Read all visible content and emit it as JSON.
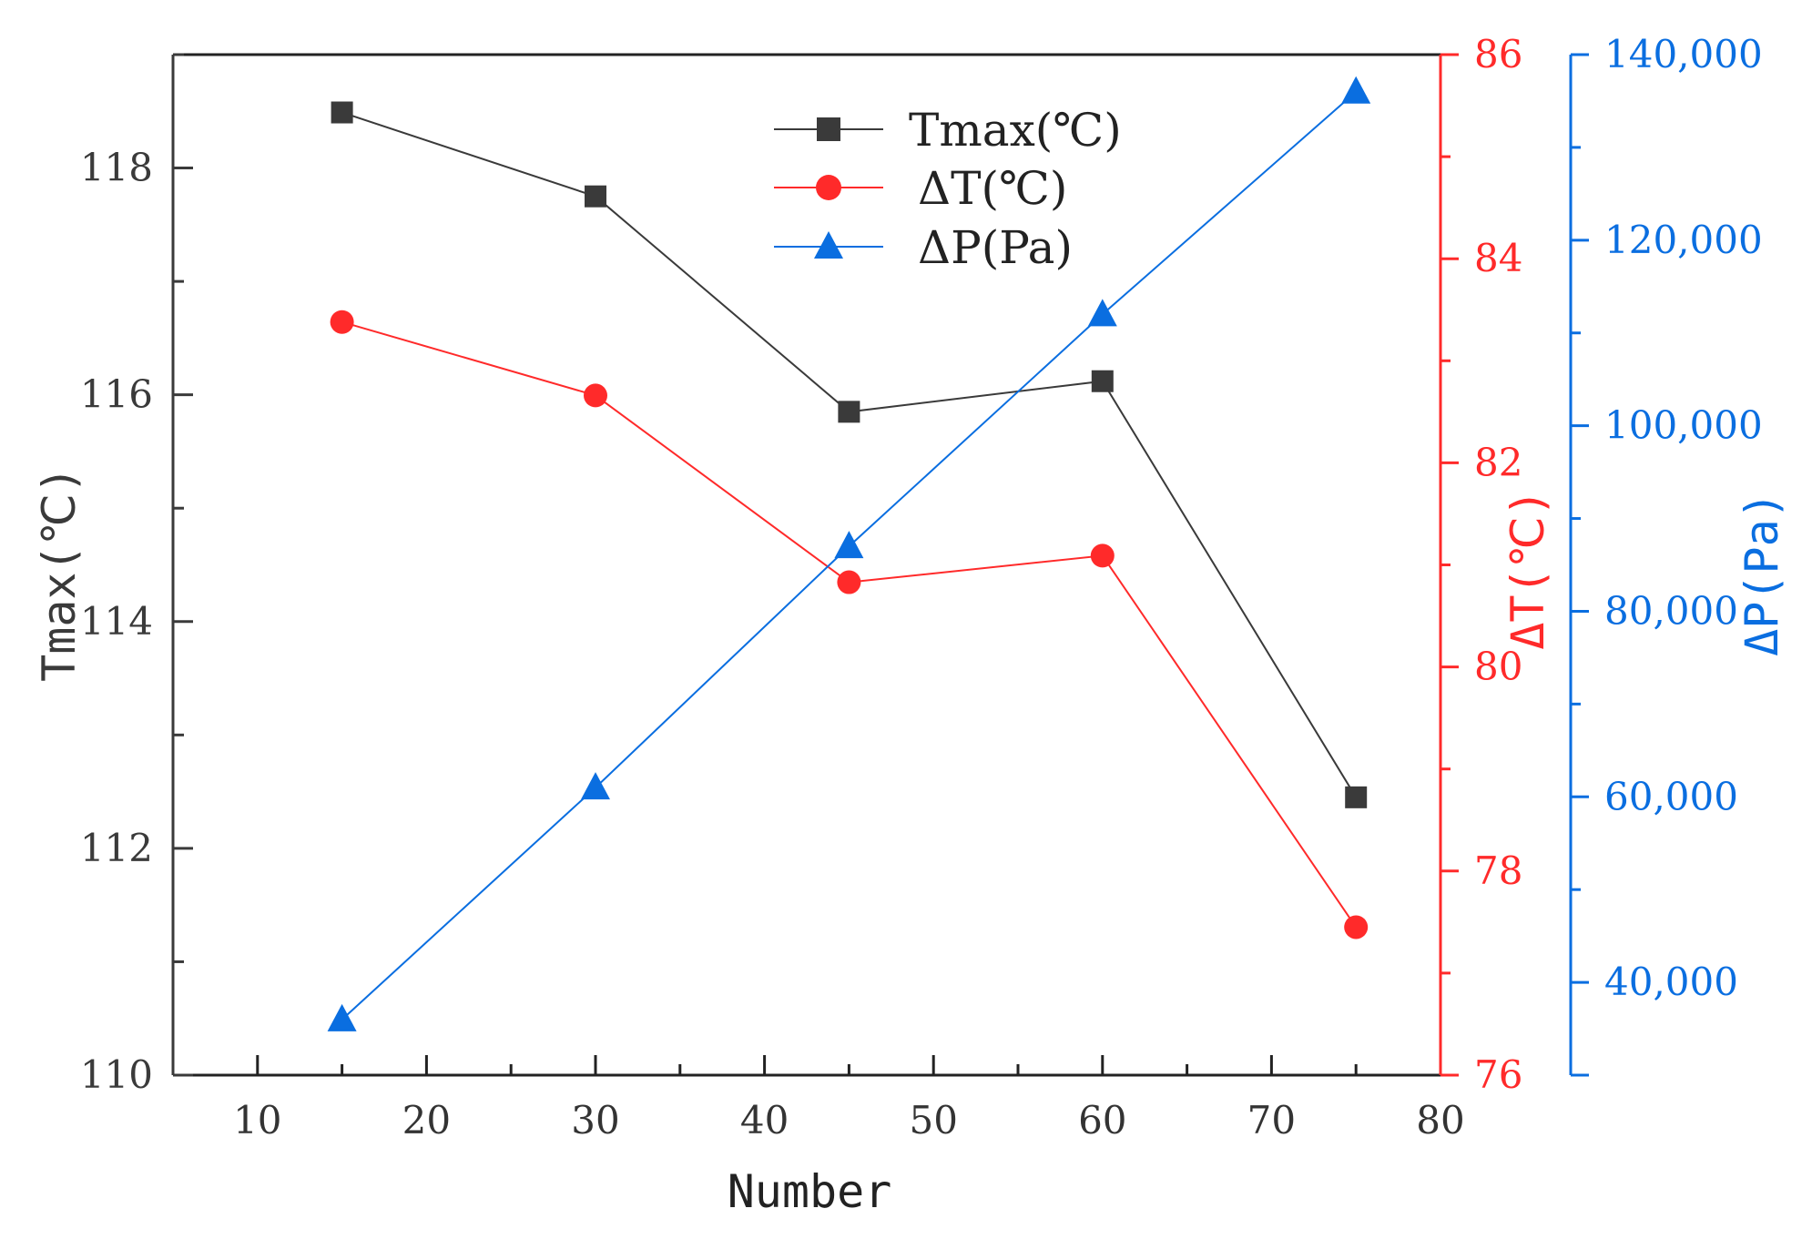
{
  "chart_data": {
    "type": "line",
    "x": [
      15,
      30,
      45,
      60,
      75
    ],
    "xlabel": "Number",
    "xlim": [
      5,
      80
    ],
    "xticks": [
      10,
      20,
      30,
      40,
      50,
      60,
      70,
      80
    ],
    "axes": [
      {
        "id": "left",
        "label": "Tmax(℃)",
        "ylim": [
          110,
          119
        ],
        "ticks": [
          110,
          112,
          114,
          116,
          118
        ],
        "tick_labels": [
          "110",
          "112",
          "114",
          "116",
          "118"
        ],
        "color": "#3a3a3a"
      },
      {
        "id": "right1",
        "label": "ΔT(℃)",
        "ylim": [
          76,
          86
        ],
        "ticks": [
          76,
          78,
          80,
          82,
          84,
          86
        ],
        "tick_labels": [
          "76",
          "78",
          "80",
          "82",
          "84",
          "86"
        ],
        "color": "#ff2a2a"
      },
      {
        "id": "right2",
        "label": "ΔP(Pa)",
        "ylim": [
          30000,
          140000
        ],
        "ticks": [
          40000,
          60000,
          80000,
          100000,
          120000,
          140000
        ],
        "tick_labels": [
          "40,000",
          "60,000",
          "80,000",
          "100,000",
          "120,000",
          "140,000"
        ],
        "color": "#0a6ee0"
      }
    ],
    "series": [
      {
        "name": "Tmax(℃)",
        "axis": "left",
        "marker": "square",
        "color": "#3a3a3a",
        "values": [
          118.49,
          117.75,
          115.85,
          116.12,
          112.45
        ]
      },
      {
        "name": "ΔT(℃)",
        "axis": "right1",
        "marker": "circle",
        "color": "#ff2a2a",
        "values": [
          83.38,
          82.66,
          80.83,
          81.09,
          77.45
        ]
      },
      {
        "name": "ΔP(Pa)",
        "axis": "right2",
        "marker": "triangle",
        "color": "#0a6ee0",
        "values": [
          36000,
          61000,
          87000,
          112000,
          136000
        ]
      }
    ],
    "legend": "top-center"
  }
}
